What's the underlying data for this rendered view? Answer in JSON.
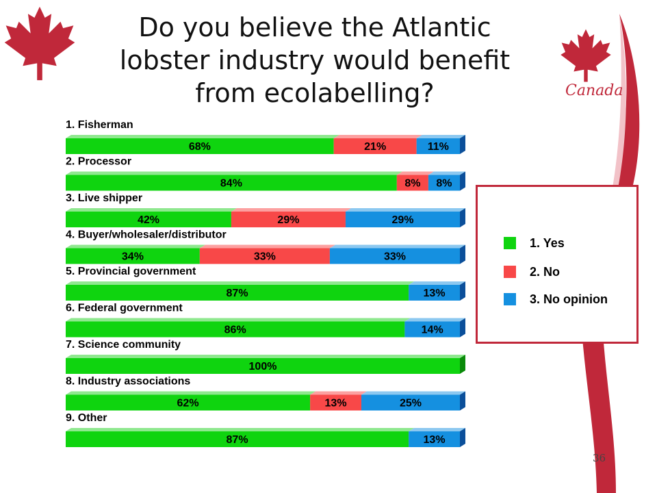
{
  "slide": {
    "title_lines": [
      "Do you believe the Atlantic",
      "lobster industry would benefit",
      "from ecolabelling?"
    ],
    "brand": "Canada",
    "page_number": "36"
  },
  "colors": {
    "yes": "#0fd40f",
    "no": "#f84848",
    "no_opinion": "#1590e0",
    "accent": "#c0283a"
  },
  "chart_data": {
    "type": "bar",
    "orientation": "horizontal",
    "stacked": true,
    "unit": "%",
    "categories": [
      "1. Fisherman",
      "2. Processor",
      "3. Live shipper",
      "4. Buyer/wholesaler/distributor",
      "5. Provincial government",
      "6. Federal government",
      "7. Science community",
      "8. Industry associations",
      "9. Other"
    ],
    "series": [
      {
        "name": "1. Yes",
        "values": [
          68,
          84,
          42,
          34,
          87,
          86,
          100,
          62,
          87
        ]
      },
      {
        "name": "2. No",
        "values": [
          21,
          8,
          29,
          33,
          0,
          0,
          0,
          13,
          0
        ]
      },
      {
        "name": "3. No opinion",
        "values": [
          11,
          8,
          29,
          33,
          13,
          14,
          0,
          25,
          13
        ]
      }
    ],
    "xlim": [
      0,
      100
    ],
    "legend_position": "right",
    "grid": false
  }
}
